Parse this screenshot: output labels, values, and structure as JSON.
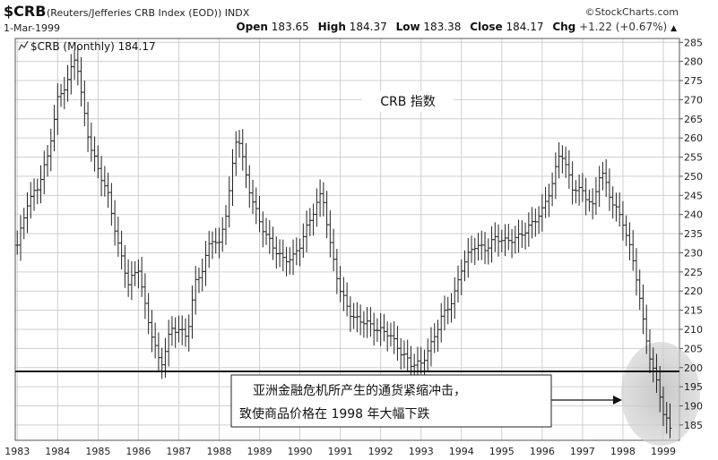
{
  "header": {
    "symbol": "$CRB",
    "index_name": "(Reuters/Jefferies CRB Index (EOD))",
    "exchange": "INDX",
    "brand": "©StockCharts.com",
    "date": "1-Mar-1999",
    "open_label": "Open",
    "open_value": "183.65",
    "high_label": "High",
    "high_value": "184.37",
    "low_label": "Low",
    "low_value": "183.38",
    "close_label": "Close",
    "close_value": "184.17",
    "chg_label": "Chg",
    "chg_value": "+1.22 (+0.67%)",
    "chg_arrow": "▲"
  },
  "legend": {
    "icon": "line-chart-icon",
    "text": "$CRB (Monthly) 184.17"
  },
  "annotation": {
    "title": "CRB 指数",
    "callout_line1": "亚洲金融危机所产生的通货紧缩冲击，",
    "callout_line2": "致使商品价格在 1998 年大幅下跌"
  },
  "chart_data": {
    "type": "ohlc",
    "title": "CRB 指数",
    "xlabel": "",
    "ylabel": "",
    "x_ticks": [
      "1983",
      "1984",
      "1985",
      "1986",
      "1987",
      "1988",
      "1989",
      "1990",
      "1991",
      "1992",
      "1993",
      "1994",
      "1995",
      "1996",
      "1997",
      "1998",
      "1999"
    ],
    "y_ticks": [
      185,
      190,
      195,
      200,
      205,
      210,
      215,
      220,
      225,
      230,
      235,
      240,
      245,
      250,
      255,
      260,
      265,
      270,
      275,
      280,
      285
    ],
    "ylim": [
      181,
      286
    ],
    "xlim": [
      1982.95,
      1999.4
    ],
    "grid": true,
    "horizontal_line": 199,
    "colors": {
      "bars": "#222222",
      "line": "#111111",
      "grid": "#cfcfcf",
      "highlight": "#c8c8c8"
    },
    "anchors": [
      [
        1983.0,
        232
      ],
      [
        1983.25,
        243
      ],
      [
        1983.5,
        247
      ],
      [
        1983.75,
        255
      ],
      [
        1984.0,
        270
      ],
      [
        1984.25,
        275
      ],
      [
        1984.45,
        282
      ],
      [
        1984.6,
        270
      ],
      [
        1984.8,
        258
      ],
      [
        1985.0,
        252
      ],
      [
        1985.25,
        245
      ],
      [
        1985.5,
        232
      ],
      [
        1985.75,
        222
      ],
      [
        1986.0,
        226
      ],
      [
        1986.2,
        214
      ],
      [
        1986.4,
        206
      ],
      [
        1986.55,
        200
      ],
      [
        1986.8,
        210
      ],
      [
        1987.0,
        210
      ],
      [
        1987.2,
        208
      ],
      [
        1987.4,
        222
      ],
      [
        1987.6,
        226
      ],
      [
        1987.8,
        234
      ],
      [
        1988.0,
        232
      ],
      [
        1988.2,
        242
      ],
      [
        1988.45,
        262
      ],
      [
        1988.7,
        248
      ],
      [
        1989.0,
        238
      ],
      [
        1989.3,
        232
      ],
      [
        1989.6,
        228
      ],
      [
        1989.85,
        229
      ],
      [
        1990.0,
        232
      ],
      [
        1990.3,
        240
      ],
      [
        1990.55,
        246
      ],
      [
        1990.75,
        232
      ],
      [
        1991.0,
        220
      ],
      [
        1991.3,
        213
      ],
      [
        1991.6,
        212
      ],
      [
        1991.9,
        210
      ],
      [
        1992.2,
        209
      ],
      [
        1992.5,
        204
      ],
      [
        1992.75,
        201
      ],
      [
        1993.0,
        201
      ],
      [
        1993.25,
        206
      ],
      [
        1993.5,
        213
      ],
      [
        1993.8,
        218
      ],
      [
        1994.0,
        226
      ],
      [
        1994.3,
        232
      ],
      [
        1994.6,
        231
      ],
      [
        1994.85,
        234
      ],
      [
        1995.1,
        233
      ],
      [
        1995.4,
        234
      ],
      [
        1995.7,
        237
      ],
      [
        1996.0,
        241
      ],
      [
        1996.25,
        248
      ],
      [
        1996.45,
        257
      ],
      [
        1996.75,
        247
      ],
      [
        1997.0,
        246
      ],
      [
        1997.25,
        242
      ],
      [
        1997.45,
        252
      ],
      [
        1997.7,
        244
      ],
      [
        1998.0,
        238
      ],
      [
        1998.3,
        226
      ],
      [
        1998.5,
        212
      ],
      [
        1998.7,
        201
      ],
      [
        1998.9,
        194
      ],
      [
        1999.0,
        188
      ],
      [
        1999.17,
        184
      ]
    ]
  }
}
